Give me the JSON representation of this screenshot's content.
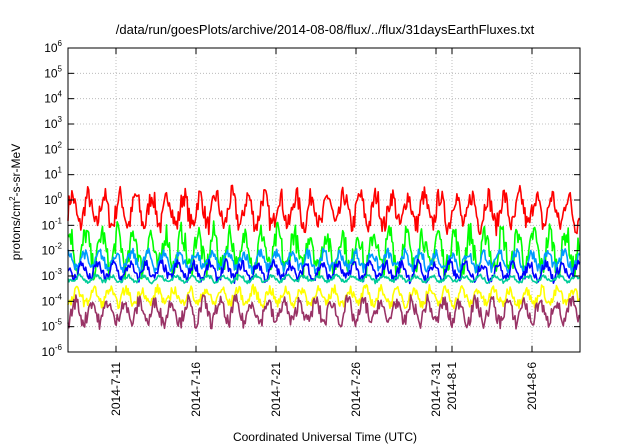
{
  "chart_data": {
    "type": "line",
    "title": "/data/run/goesPlots/archive/2014-08-08/flux/../flux/31daysEarthFluxes.txt",
    "xlabel": "Coordinated Universal Time (UTC)",
    "ylabel": {
      "prefix": "protons/cm",
      "superscript": "2",
      "suffix": "-s-sr-MeV"
    },
    "yscale": "log",
    "ylim": [
      "1e-6",
      "1e6"
    ],
    "xlim": [
      "2014-07-08",
      "2014-08-09"
    ],
    "grid": true,
    "y_ticks": [
      {
        "base": "10",
        "exp": "6",
        "value": 1000000.0
      },
      {
        "base": "10",
        "exp": "5",
        "value": 100000.0
      },
      {
        "base": "10",
        "exp": "4",
        "value": 10000.0
      },
      {
        "base": "10",
        "exp": "3",
        "value": 1000.0
      },
      {
        "base": "10",
        "exp": "2",
        "value": 100.0
      },
      {
        "base": "10",
        "exp": "1",
        "value": 10.0
      },
      {
        "base": "10",
        "exp": "0",
        "value": 1.0
      },
      {
        "base": "10",
        "exp": "-1",
        "value": 0.1
      },
      {
        "base": "10",
        "exp": "-2",
        "value": 0.01
      },
      {
        "base": "10",
        "exp": "-3",
        "value": 0.001
      },
      {
        "base": "10",
        "exp": "-4",
        "value": 0.0001
      },
      {
        "base": "10",
        "exp": "-5",
        "value": 1e-05
      },
      {
        "base": "10",
        "exp": "-6",
        "value": 1e-06
      }
    ],
    "x_ticks": [
      {
        "label": "2014-7-11",
        "date": "2014-07-11"
      },
      {
        "label": "2014-7-16",
        "date": "2014-07-16"
      },
      {
        "label": "2014-7-21",
        "date": "2014-07-21"
      },
      {
        "label": "2014-7-26",
        "date": "2014-07-26"
      },
      {
        "label": "2014-7-31",
        "date": "2014-07-31"
      },
      {
        "label": "2014-8-1",
        "date": "2014-08-01"
      },
      {
        "label": "2014-8-6",
        "date": "2014-08-06"
      }
    ],
    "series": [
      {
        "color": "#ff0000",
        "daily_low": 0.1,
        "daily_high": 1.5
      },
      {
        "color": "#00ff00",
        "daily_low": 0.002,
        "daily_high": 0.05
      },
      {
        "color": "#0099ff",
        "daily_low": 0.002,
        "daily_high": 0.008
      },
      {
        "color": "#0000ff",
        "daily_low": 0.0008,
        "daily_high": 0.003
      },
      {
        "color": "#00cc99",
        "daily_low": 0.0006,
        "daily_high": 0.001
      },
      {
        "color": "#ffff00",
        "daily_low": 8e-05,
        "daily_high": 0.0003
      },
      {
        "color": "#993366",
        "daily_low": 1.5e-05,
        "daily_high": 0.0001
      }
    ]
  }
}
